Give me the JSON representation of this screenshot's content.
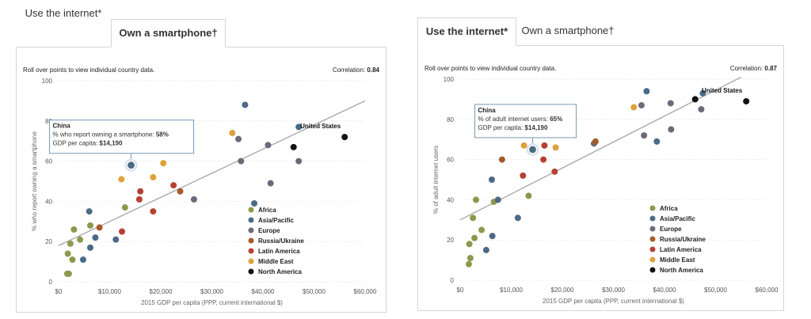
{
  "tabs": {
    "internet_label": "Use the internet*",
    "smartphone_label": "Own a smartphone†"
  },
  "instruction": "Roll over points to view individual country data.",
  "correlation_label": "Correlation:",
  "legend": [
    {
      "name": "Africa",
      "color": "#8a9a4c"
    },
    {
      "name": "Asia/Pacific",
      "color": "#4b6a86"
    },
    {
      "name": "Europe",
      "color": "#6f6878"
    },
    {
      "name": "Russia/Ukraine",
      "color": "#a45a2a"
    },
    {
      "name": "Latin America",
      "color": "#b84033"
    },
    {
      "name": "Middle East",
      "color": "#e0a03c"
    },
    {
      "name": "North America",
      "color": "#111111"
    }
  ],
  "x_ticks": [
    "$0",
    "$10,000",
    "$20,000",
    "$30,000",
    "$40,000",
    "$50,000",
    "$60,000"
  ],
  "y_ticks": [
    "0",
    "20",
    "40",
    "60",
    "80",
    "100"
  ],
  "chart_data": [
    {
      "type": "scatter",
      "id": "smartphone",
      "correlation": "0.84",
      "xlabel": "2015 GDP per capita (PPP, current international $)",
      "ylabel": "% who report owning a smartphone",
      "xlim": [
        0,
        60000
      ],
      "ylim": [
        0,
        100
      ],
      "trendline": [
        [
          0,
          18
        ],
        [
          60000,
          90
        ]
      ],
      "point_label": "United States",
      "tooltip": {
        "title": "China",
        "line1_label": "% who report owning a smartphone:",
        "line1_value": "58%",
        "line2_label": "GDP per capita:",
        "line2_value": "$14,190"
      },
      "points": [
        {
          "x": 14190,
          "y": 58,
          "region": "Asia/Pacific",
          "highlight": true
        },
        {
          "x": 1700,
          "y": 4,
          "region": "Africa"
        },
        {
          "x": 2000,
          "y": 4,
          "region": "Africa"
        },
        {
          "x": 1800,
          "y": 14,
          "region": "Africa"
        },
        {
          "x": 2700,
          "y": 11,
          "region": "Africa"
        },
        {
          "x": 2300,
          "y": 19,
          "region": "Africa"
        },
        {
          "x": 3000,
          "y": 26,
          "region": "Africa"
        },
        {
          "x": 4200,
          "y": 21,
          "region": "Africa"
        },
        {
          "x": 6200,
          "y": 28,
          "region": "Africa"
        },
        {
          "x": 13000,
          "y": 37,
          "region": "Africa"
        },
        {
          "x": 4800,
          "y": 11,
          "region": "Asia/Pacific"
        },
        {
          "x": 6200,
          "y": 17,
          "region": "Asia/Pacific"
        },
        {
          "x": 6000,
          "y": 35,
          "region": "Asia/Pacific"
        },
        {
          "x": 7200,
          "y": 22,
          "region": "Asia/Pacific"
        },
        {
          "x": 11200,
          "y": 21,
          "region": "Asia/Pacific"
        },
        {
          "x": 36500,
          "y": 88,
          "region": "Asia/Pacific"
        },
        {
          "x": 38300,
          "y": 39,
          "region": "Asia/Pacific"
        },
        {
          "x": 47000,
          "y": 77,
          "region": "Asia/Pacific"
        },
        {
          "x": 26500,
          "y": 41,
          "region": "Europe"
        },
        {
          "x": 35200,
          "y": 71,
          "region": "Europe"
        },
        {
          "x": 35700,
          "y": 60,
          "region": "Europe"
        },
        {
          "x": 41000,
          "y": 68,
          "region": "Europe"
        },
        {
          "x": 41500,
          "y": 49,
          "region": "Europe"
        },
        {
          "x": 47000,
          "y": 60,
          "region": "Europe"
        },
        {
          "x": 8000,
          "y": 27,
          "region": "Russia/Ukraine"
        },
        {
          "x": 23800,
          "y": 45,
          "region": "Russia/Ukraine"
        },
        {
          "x": 12400,
          "y": 25,
          "region": "Latin America"
        },
        {
          "x": 15800,
          "y": 41,
          "region": "Latin America"
        },
        {
          "x": 16000,
          "y": 45,
          "region": "Latin America"
        },
        {
          "x": 18500,
          "y": 35,
          "region": "Latin America"
        },
        {
          "x": 22500,
          "y": 48,
          "region": "Latin America"
        },
        {
          "x": 12300,
          "y": 51,
          "region": "Middle East"
        },
        {
          "x": 18500,
          "y": 52,
          "region": "Middle East"
        },
        {
          "x": 20500,
          "y": 59,
          "region": "Middle East"
        },
        {
          "x": 34000,
          "y": 74,
          "region": "Middle East"
        },
        {
          "x": 46000,
          "y": 67,
          "region": "North America"
        },
        {
          "x": 56000,
          "y": 72,
          "region": "North America"
        }
      ]
    },
    {
      "type": "scatter",
      "id": "internet",
      "correlation": "0.87",
      "xlabel": "2015 GDP per capita (PPP, current international $)",
      "ylabel": "% of adult internet users",
      "xlim": [
        0,
        60000
      ],
      "ylim": [
        0,
        100
      ],
      "trendline": [
        [
          0,
          30
        ],
        [
          55000,
          101
        ]
      ],
      "point_label": "United States",
      "tooltip": {
        "title": "China",
        "line1_label": "% of adult internet users:",
        "line1_value": "65%",
        "line2_label": "GDP per capita:",
        "line2_value": "$14,190"
      },
      "points": [
        {
          "x": 14190,
          "y": 65,
          "region": "Asia/Pacific",
          "highlight": true
        },
        {
          "x": 1700,
          "y": 8,
          "region": "Africa"
        },
        {
          "x": 2000,
          "y": 11,
          "region": "Africa"
        },
        {
          "x": 1800,
          "y": 18,
          "region": "Africa"
        },
        {
          "x": 2800,
          "y": 21,
          "region": "Africa"
        },
        {
          "x": 2500,
          "y": 31,
          "region": "Africa"
        },
        {
          "x": 3100,
          "y": 40,
          "region": "Africa"
        },
        {
          "x": 4200,
          "y": 25,
          "region": "Africa"
        },
        {
          "x": 6600,
          "y": 39,
          "region": "Africa"
        },
        {
          "x": 13400,
          "y": 42,
          "region": "Africa"
        },
        {
          "x": 5100,
          "y": 15,
          "region": "Asia/Pacific"
        },
        {
          "x": 6300,
          "y": 22,
          "region": "Asia/Pacific"
        },
        {
          "x": 6200,
          "y": 50,
          "region": "Asia/Pacific"
        },
        {
          "x": 7400,
          "y": 40,
          "region": "Asia/Pacific"
        },
        {
          "x": 11300,
          "y": 31,
          "region": "Asia/Pacific"
        },
        {
          "x": 36500,
          "y": 94,
          "region": "Asia/Pacific"
        },
        {
          "x": 38500,
          "y": 69,
          "region": "Asia/Pacific"
        },
        {
          "x": 47500,
          "y": 93,
          "region": "Asia/Pacific"
        },
        {
          "x": 26200,
          "y": 68,
          "region": "Europe"
        },
        {
          "x": 35500,
          "y": 87,
          "region": "Europe"
        },
        {
          "x": 36000,
          "y": 72,
          "region": "Europe"
        },
        {
          "x": 41200,
          "y": 88,
          "region": "Europe"
        },
        {
          "x": 41300,
          "y": 75,
          "region": "Europe"
        },
        {
          "x": 47200,
          "y": 85,
          "region": "Europe"
        },
        {
          "x": 8200,
          "y": 60,
          "region": "Russia/Ukraine"
        },
        {
          "x": 26500,
          "y": 69,
          "region": "Russia/Ukraine"
        },
        {
          "x": 12300,
          "y": 52,
          "region": "Latin America"
        },
        {
          "x": 16300,
          "y": 60,
          "region": "Latin America"
        },
        {
          "x": 16500,
          "y": 67,
          "region": "Latin America"
        },
        {
          "x": 18500,
          "y": 54,
          "region": "Latin America"
        },
        {
          "x": 12500,
          "y": 67,
          "region": "Middle East"
        },
        {
          "x": 18700,
          "y": 66,
          "region": "Middle East"
        },
        {
          "x": 34000,
          "y": 86,
          "region": "Middle East"
        },
        {
          "x": 46000,
          "y": 90,
          "region": "North America"
        },
        {
          "x": 56000,
          "y": 89,
          "region": "North America"
        }
      ]
    }
  ]
}
